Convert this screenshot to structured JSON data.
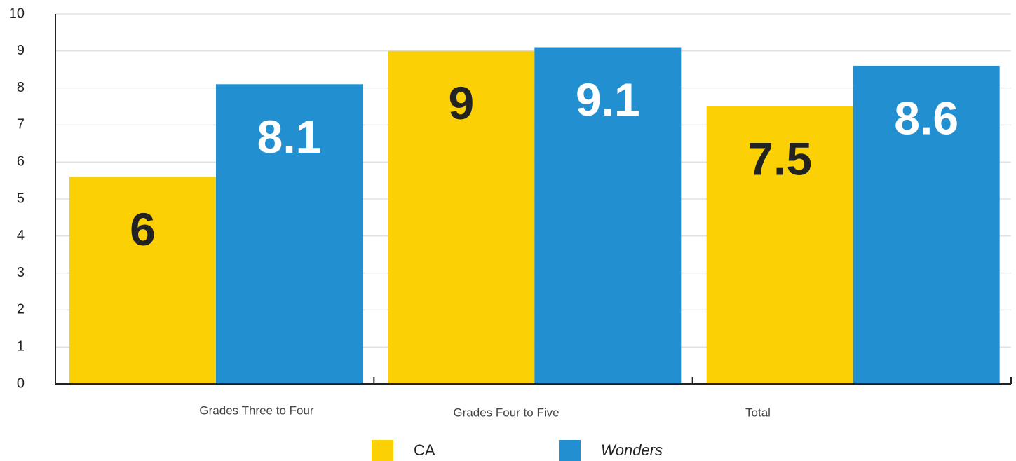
{
  "chart_data": {
    "type": "bar",
    "categories": [
      "Grades Three to Four",
      "Grades Four to Five",
      "Total"
    ],
    "series": [
      {
        "name": "CA",
        "color": "#fbd105",
        "values": [
          5.6,
          9,
          7.5
        ],
        "value_labels": [
          "6",
          "9",
          "7.5"
        ]
      },
      {
        "name": "Wonders",
        "color": "#2290d0",
        "values": [
          8.1,
          9.1,
          8.6
        ]
      }
    ],
    "ylim": [
      0,
      10
    ],
    "yticks": [
      0,
      1,
      2,
      3,
      4,
      5,
      6,
      7,
      8,
      9,
      10
    ],
    "grid": true
  }
}
